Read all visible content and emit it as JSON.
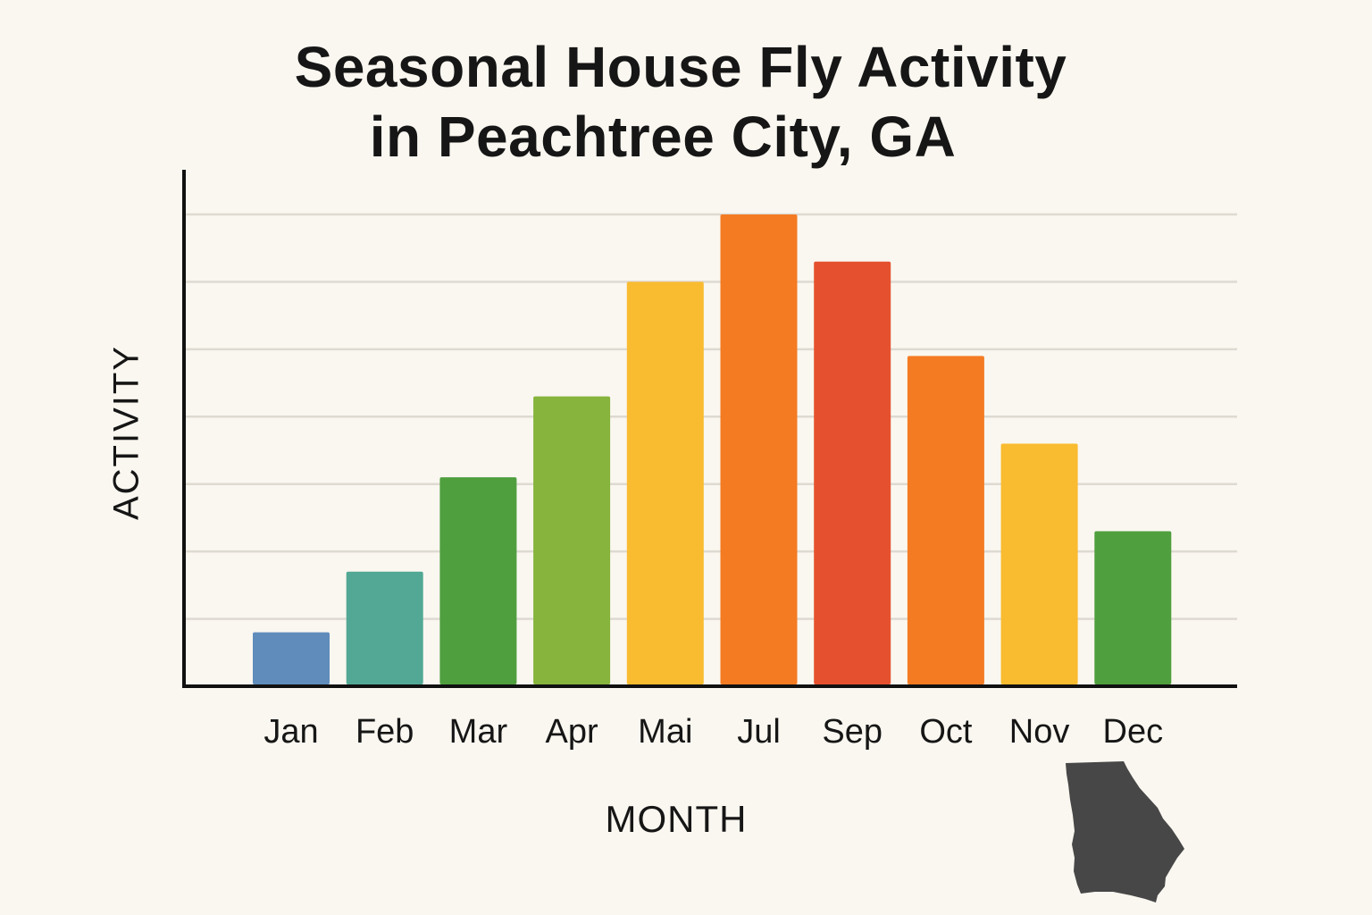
{
  "chart_data": {
    "type": "bar",
    "title_lines": [
      "Seasonal House Fly Activity",
      "in Peachtree City, GA"
    ],
    "xlabel": "MONTH",
    "ylabel": "ACTIVITY",
    "ylim": [
      0,
      7
    ],
    "grid": true,
    "legend": null,
    "categories": [
      "Jan",
      "Feb",
      "Mar",
      "Apr",
      "Mai",
      "Jul",
      "Sep",
      "Oct",
      "Nov",
      "Dec"
    ],
    "values": [
      0.8,
      1.7,
      3.1,
      4.3,
      6.0,
      7.0,
      6.3,
      4.9,
      3.6,
      2.3
    ],
    "colors": [
      "#5f8cbb",
      "#52a894",
      "#4f9f3e",
      "#86b43c",
      "#f9bb30",
      "#f47b22",
      "#e5512e",
      "#f47b22",
      "#f9bb30",
      "#4f9f3e"
    ],
    "decoration": "georgia-state-silhouette-icon"
  }
}
